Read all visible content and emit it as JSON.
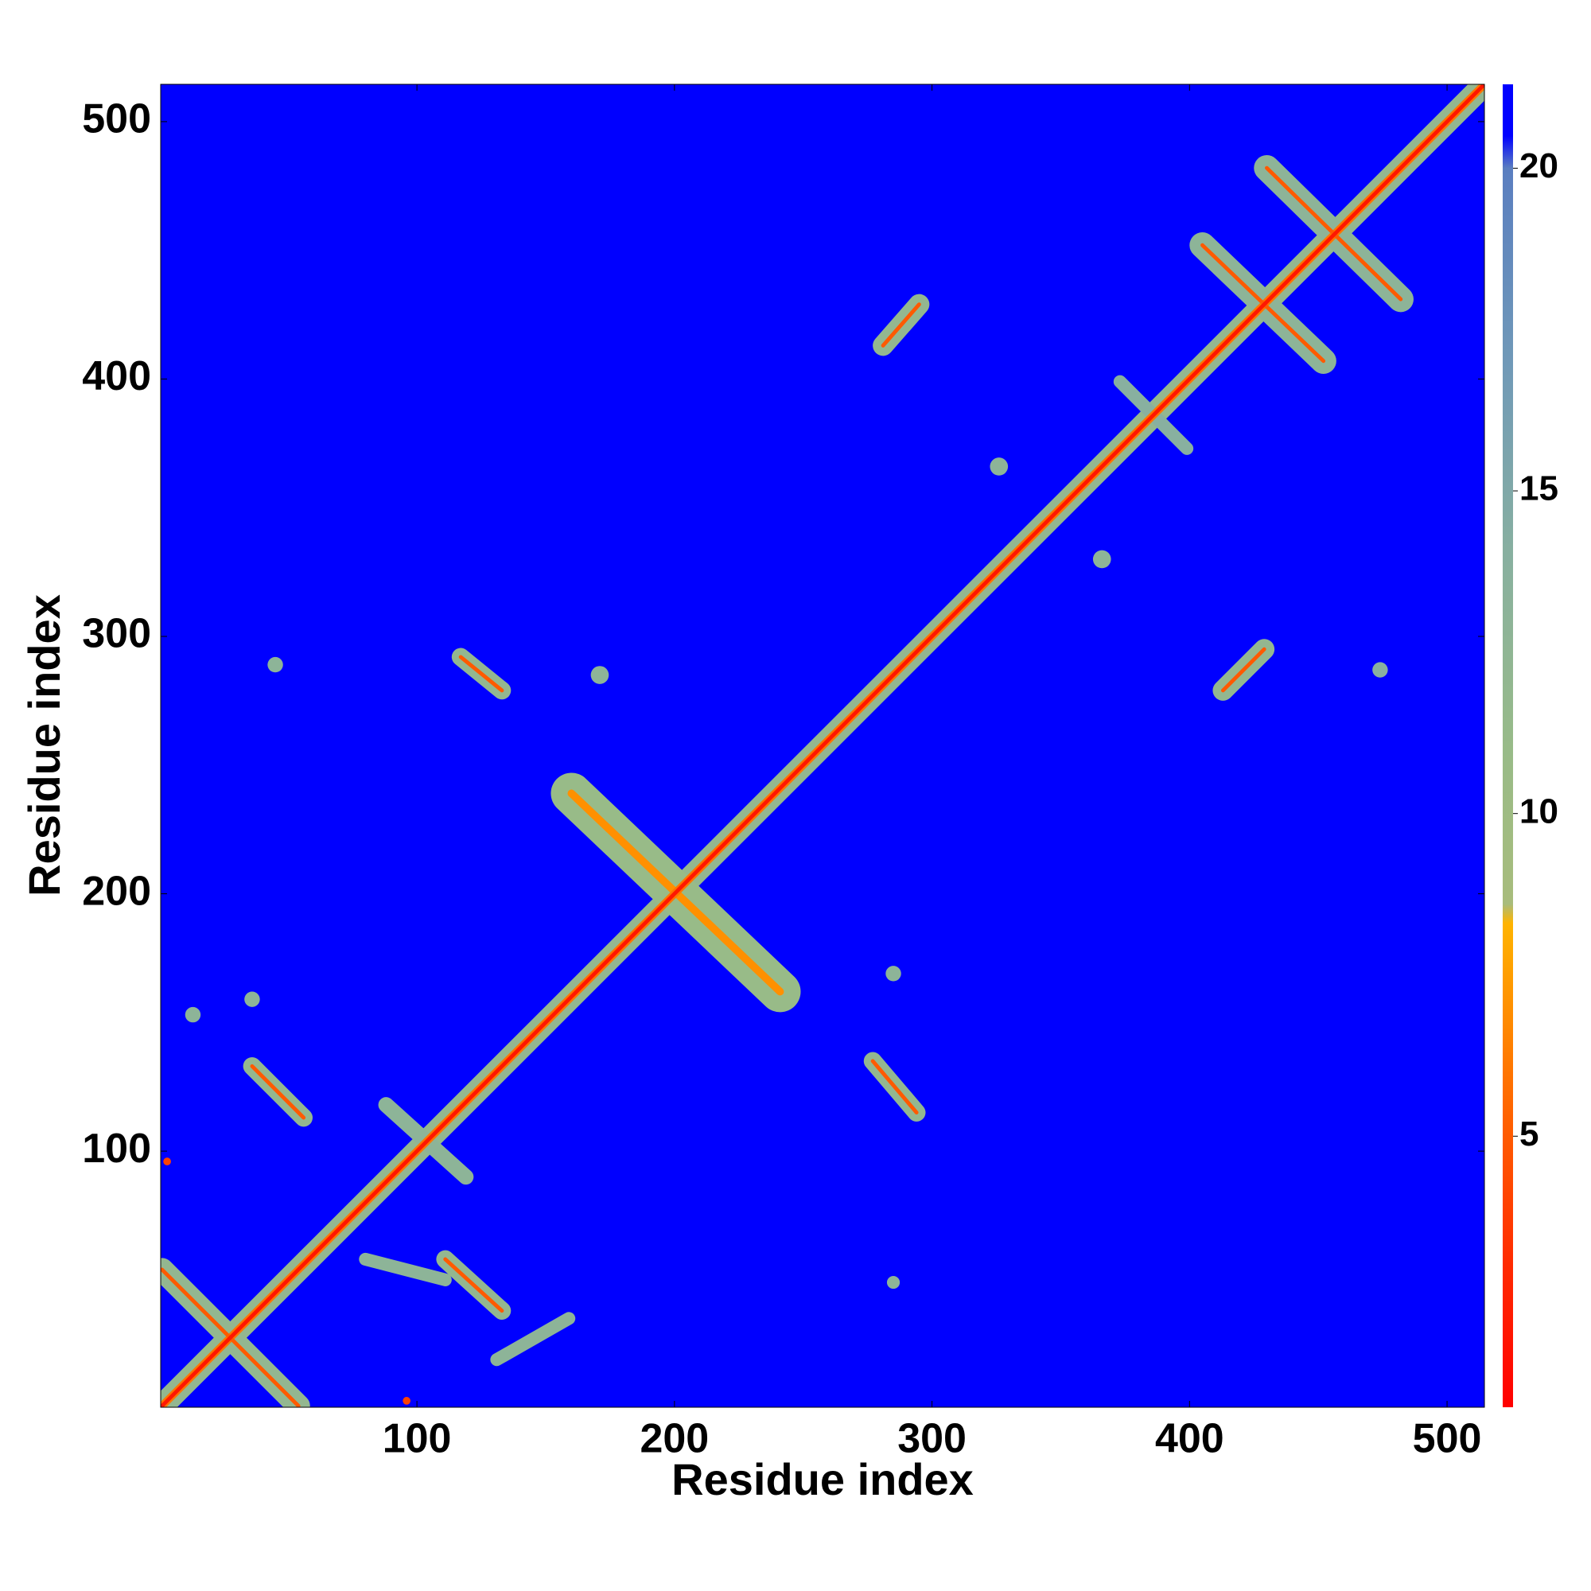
{
  "chart_data": {
    "type": "contact_map",
    "xlabel": "Residue index",
    "ylabel": "Residue index",
    "xlim": [
      0.5,
      514.5
    ],
    "ylim": [
      0.5,
      514.5
    ],
    "xticks": [
      100,
      200,
      300,
      400,
      500
    ],
    "yticks": [
      100,
      200,
      300,
      400,
      500
    ],
    "colorbar": {
      "lim": [
        0.8,
        21.3
      ],
      "ticks": [
        5,
        10,
        15,
        20
      ],
      "stops": [
        [
          0.8,
          "#ff0000"
        ],
        [
          3,
          "#ff2a00"
        ],
        [
          5,
          "#ff5a00"
        ],
        [
          7,
          "#ff9000"
        ],
        [
          8.3,
          "#ffb400"
        ],
        [
          8.6,
          "#a8bc7c"
        ],
        [
          11,
          "#98bb88"
        ],
        [
          14,
          "#88b0a0"
        ],
        [
          17,
          "#7099b8"
        ],
        [
          20,
          "#5a7ec0"
        ],
        [
          20.5,
          "#0000ff"
        ],
        [
          21.3,
          "#0000ff"
        ]
      ]
    },
    "contacts": [
      {
        "x": [
          1,
          514
        ],
        "y": [
          1,
          514
        ],
        "value": 12,
        "width": 9
      },
      {
        "x": [
          1,
          54
        ],
        "y": [
          54,
          1
        ],
        "value": 12,
        "width": 9
      },
      {
        "x": [
          160,
          241
        ],
        "y": [
          239,
          162
        ],
        "value": 11,
        "width": 16
      },
      {
        "x": [
          36,
          56
        ],
        "y": [
          133,
          113
        ],
        "value": 12,
        "width": 7
      },
      {
        "x": [
          111,
          133
        ],
        "y": [
          58,
          38
        ],
        "value": 12,
        "width": 7
      },
      {
        "x": [
          117,
          133
        ],
        "y": [
          292,
          279
        ],
        "value": 12,
        "width": 7
      },
      {
        "x": [
          277,
          294
        ],
        "y": [
          135,
          115
        ],
        "value": 12,
        "width": 7
      },
      {
        "x": [
          281,
          295
        ],
        "y": [
          413,
          429
        ],
        "value": 12,
        "width": 8
      },
      {
        "x": [
          413,
          429
        ],
        "y": [
          279,
          295
        ],
        "value": 12,
        "width": 8
      },
      {
        "x": [
          405,
          452
        ],
        "y": [
          452,
          407
        ],
        "value": 13,
        "width": 10
      },
      {
        "x": [
          430,
          482
        ],
        "y": [
          482,
          431
        ],
        "value": 13,
        "width": 10
      },
      {
        "x": [
          88,
          119
        ],
        "y": [
          118,
          90
        ],
        "value": 13,
        "width": 6
      },
      {
        "x": [
          80,
          111
        ],
        "y": [
          58,
          50
        ],
        "value": 13,
        "width": 5
      },
      {
        "x": [
          131,
          159
        ],
        "y": [
          19,
          35
        ],
        "value": 13,
        "width": 5
      },
      {
        "x": [
          45,
          45
        ],
        "y": [
          289,
          289
        ],
        "value": 13,
        "width": 6
      },
      {
        "x": [
          171,
          171
        ],
        "y": [
          285,
          285
        ],
        "value": 13,
        "width": 7
      },
      {
        "x": [
          285,
          285
        ],
        "y": [
          169,
          169
        ],
        "value": 13,
        "width": 6
      },
      {
        "x": [
          285,
          285
        ],
        "y": [
          49,
          49
        ],
        "value": 13,
        "width": 5
      },
      {
        "x": [
          326,
          326
        ],
        "y": [
          366,
          366
        ],
        "value": 13,
        "width": 7
      },
      {
        "x": [
          366,
          366
        ],
        "y": [
          330,
          330
        ],
        "value": 13,
        "width": 7
      },
      {
        "x": [
          474,
          474
        ],
        "y": [
          287,
          287
        ],
        "value": 14,
        "width": 6
      },
      {
        "x": [
          13,
          13
        ],
        "y": [
          153,
          153
        ],
        "value": 13,
        "width": 6
      },
      {
        "x": [
          36,
          36
        ],
        "y": [
          159,
          159
        ],
        "value": 13,
        "width": 6
      },
      {
        "x": [
          373,
          399
        ],
        "y": [
          399,
          373
        ],
        "value": 14,
        "width": 5
      },
      {
        "x": [
          160,
          241
        ],
        "y": [
          239,
          162
        ],
        "value": 7,
        "width": 3
      },
      {
        "x": [
          1,
          514
        ],
        "y": [
          1,
          514
        ],
        "value": 6,
        "width": 3
      },
      {
        "x": [
          1,
          54
        ],
        "y": [
          54,
          1
        ],
        "value": 5,
        "width": 1.5
      },
      {
        "x": [
          36,
          56
        ],
        "y": [
          133,
          113
        ],
        "value": 5,
        "width": 1.5
      },
      {
        "x": [
          111,
          133
        ],
        "y": [
          58,
          38
        ],
        "value": 5,
        "width": 1.5
      },
      {
        "x": [
          117,
          133
        ],
        "y": [
          292,
          279
        ],
        "value": 5,
        "width": 1.5
      },
      {
        "x": [
          277,
          294
        ],
        "y": [
          135,
          115
        ],
        "value": 5,
        "width": 1.5
      },
      {
        "x": [
          281,
          295
        ],
        "y": [
          413,
          429
        ],
        "value": 5,
        "width": 1.5
      },
      {
        "x": [
          413,
          429
        ],
        "y": [
          279,
          295
        ],
        "value": 5,
        "width": 1.5
      },
      {
        "x": [
          405,
          452
        ],
        "y": [
          452,
          407
        ],
        "value": 5,
        "width": 1.5
      },
      {
        "x": [
          430,
          482
        ],
        "y": [
          482,
          431
        ],
        "value": 5,
        "width": 1.5
      },
      {
        "x": [
          3,
          3
        ],
        "y": [
          96,
          96
        ],
        "value": 4,
        "width": 3
      },
      {
        "x": [
          96,
          96
        ],
        "y": [
          3,
          3
        ],
        "value": 4,
        "width": 3
      },
      {
        "x": [
          1,
          514
        ],
        "y": [
          1,
          514
        ],
        "value": 2,
        "width": 1.5
      }
    ]
  }
}
